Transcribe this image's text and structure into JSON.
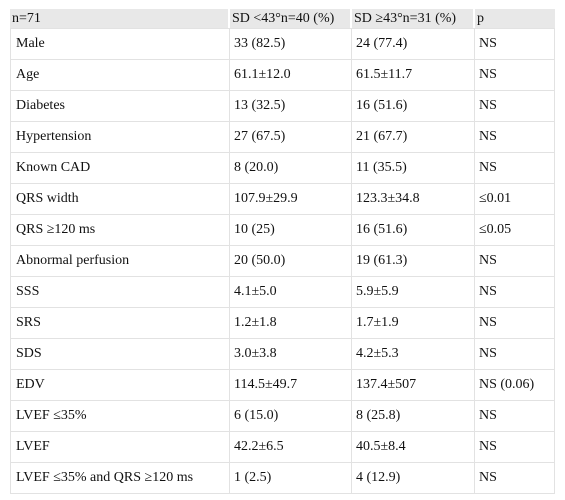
{
  "table": {
    "headers": [
      "n=71",
      "SD <43°n=40 (%)",
      "SD ≥43°n=31 (%)",
      "p"
    ],
    "rows": [
      [
        "Male",
        "33 (82.5)",
        "24 (77.4)",
        "NS"
      ],
      [
        "Age",
        "61.1±12.0",
        "61.5±11.7",
        "NS"
      ],
      [
        "Diabetes",
        "13 (32.5)",
        "16 (51.6)",
        "NS"
      ],
      [
        "Hypertension",
        "27 (67.5)",
        "21 (67.7)",
        "NS"
      ],
      [
        "Known CAD",
        "8 (20.0)",
        "11 (35.5)",
        "NS"
      ],
      [
        "QRS width",
        "107.9±29.9",
        "123.3±34.8",
        "≤0.01"
      ],
      [
        "QRS ≥120 ms",
        "10 (25)",
        "16 (51.6)",
        "≤0.05"
      ],
      [
        "Abnormal perfusion",
        "20 (50.0)",
        "19 (61.3)",
        "NS"
      ],
      [
        "SSS",
        "4.1±5.0",
        "5.9±5.9",
        "NS"
      ],
      [
        "SRS",
        "1.2±1.8",
        "1.7±1.9",
        "NS"
      ],
      [
        "SDS",
        "3.0±3.8",
        "4.2±5.3",
        "NS"
      ],
      [
        "EDV",
        "114.5±49.7",
        "137.4±507",
        "NS (0.06)"
      ],
      [
        "LVEF ≤35%",
        "6 (15.0)",
        "8 (25.8)",
        "NS"
      ],
      [
        "LVEF",
        "42.2±6.5",
        "40.5±8.4",
        "NS"
      ],
      [
        "LVEF ≤35% and QRS ≥120 ms",
        "1 (2.5)",
        "4 (12.9)",
        "NS"
      ]
    ]
  }
}
